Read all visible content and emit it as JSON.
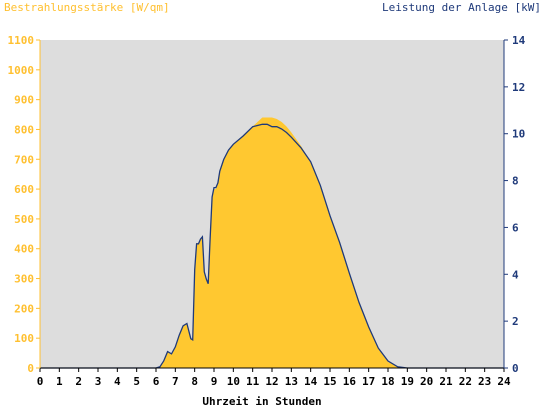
{
  "chart_data": {
    "type": "area",
    "left_axis_title": "Bestrahlungsstärke [W/qm]",
    "right_axis_title": "Leistung der Anlage [kW]",
    "xlabel": "Uhrzeit in Stunden",
    "x_ticks": [
      "0",
      "1",
      "2",
      "3",
      "4",
      "5",
      "6",
      "7",
      "8",
      "9",
      "10",
      "11",
      "12",
      "13",
      "14",
      "15",
      "16",
      "17",
      "18",
      "19",
      "20",
      "21",
      "22",
      "23",
      "24"
    ],
    "y_left_ticks": [
      "0",
      "100",
      "200",
      "300",
      "400",
      "500",
      "600",
      "700",
      "800",
      "900",
      "1000",
      "1100"
    ],
    "y_right_ticks": [
      "0",
      "2",
      "4",
      "6",
      "8",
      "10",
      "12",
      "14"
    ],
    "xlim": [
      0,
      24
    ],
    "ylim_left": [
      0,
      1100
    ],
    "ylim_right": [
      0,
      14
    ],
    "grid": false,
    "series": [
      {
        "name": "Bestrahlungsstärke [W/qm]",
        "axis": "left",
        "style": "area",
        "color": "#ffc830",
        "x": [
          0,
          6.0,
          6.2,
          6.4,
          6.6,
          6.8,
          7.0,
          7.2,
          7.4,
          7.6,
          7.8,
          7.9,
          8.0,
          8.1,
          8.2,
          8.3,
          8.4,
          8.5,
          8.6,
          8.7,
          8.8,
          8.9,
          9.0,
          9.1,
          9.2,
          9.3,
          9.5,
          9.75,
          10.0,
          10.5,
          11.0,
          11.25,
          11.5,
          11.75,
          12.0,
          12.25,
          12.5,
          12.75,
          13.0,
          13.5,
          14.0,
          14.5,
          15.0,
          15.5,
          16.0,
          16.5,
          17.0,
          17.5,
          18.0,
          18.5,
          19.0,
          19.3,
          19.6,
          24
        ],
        "y": [
          0,
          0,
          5,
          25,
          55,
          45,
          70,
          110,
          140,
          150,
          100,
          95,
          330,
          420,
          415,
          430,
          440,
          320,
          300,
          280,
          430,
          570,
          600,
          600,
          620,
          660,
          700,
          730,
          750,
          780,
          810,
          825,
          840,
          840,
          840,
          835,
          825,
          810,
          790,
          745,
          690,
          610,
          510,
          420,
          320,
          220,
          135,
          65,
          20,
          5,
          0,
          0,
          0,
          0
        ]
      },
      {
        "name": "Leistung der Anlage [kW]",
        "axis": "right",
        "style": "line",
        "color": "#1f3a7a",
        "x": [
          0,
          6.0,
          6.2,
          6.4,
          6.6,
          6.8,
          7.0,
          7.2,
          7.4,
          7.6,
          7.8,
          7.9,
          8.0,
          8.1,
          8.2,
          8.3,
          8.4,
          8.5,
          8.6,
          8.7,
          8.8,
          8.9,
          9.0,
          9.1,
          9.2,
          9.3,
          9.5,
          9.75,
          10.0,
          10.5,
          11.0,
          11.25,
          11.5,
          11.75,
          12.0,
          12.25,
          12.5,
          12.75,
          13.0,
          13.5,
          14.0,
          14.5,
          15.0,
          15.5,
          16.0,
          16.5,
          17.0,
          17.5,
          18.0,
          18.5,
          19.0,
          19.3,
          19.6,
          24
        ],
        "y": [
          0,
          0,
          0.05,
          0.3,
          0.7,
          0.6,
          0.9,
          1.4,
          1.8,
          1.9,
          1.25,
          1.2,
          4.2,
          5.3,
          5.3,
          5.5,
          5.6,
          4.1,
          3.8,
          3.6,
          5.5,
          7.3,
          7.7,
          7.7,
          7.9,
          8.4,
          8.9,
          9.3,
          9.55,
          9.9,
          10.3,
          10.35,
          10.4,
          10.4,
          10.3,
          10.3,
          10.2,
          10.05,
          9.85,
          9.4,
          8.8,
          7.8,
          6.5,
          5.35,
          4.05,
          2.8,
          1.75,
          0.85,
          0.3,
          0.05,
          0,
          0,
          0,
          0
        ]
      }
    ]
  }
}
